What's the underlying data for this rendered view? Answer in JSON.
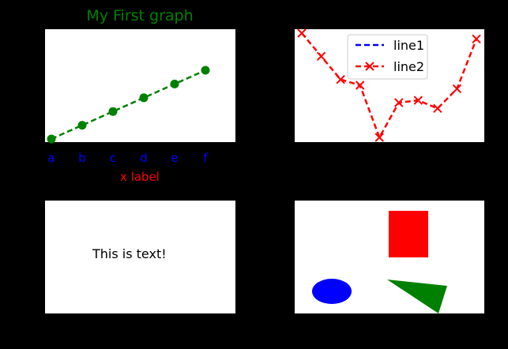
{
  "colors": {
    "figure_bg": "#000000",
    "axes_bg": "#ffffff",
    "title": "#008000",
    "x_tick": "#0000ff",
    "x_label": "#ff0000",
    "series_top_left": "#008000",
    "line1": "#0000ff",
    "line2": "#ff0000",
    "rectangle": "#ff0000",
    "ellipse": "#0000ff",
    "triangle": "#008000",
    "text": "#000000"
  },
  "chart_data": [
    {
      "type": "line",
      "title": "My First graph",
      "xlabel": "x label",
      "ylabel": "",
      "categories": [
        "a",
        "b",
        "c",
        "d",
        "e",
        "f"
      ],
      "series": [
        {
          "values": [
            0,
            1,
            2,
            3,
            4,
            5
          ],
          "style": "dashed",
          "marker": "circle",
          "color": "#008000"
        }
      ],
      "ylim": [
        0,
        5
      ],
      "grid": false,
      "show_yticks": false
    },
    {
      "type": "line",
      "title": "",
      "xlabel": "",
      "ylabel": "",
      "series": [
        {
          "name": "line1",
          "x": [],
          "values": [],
          "style": "dashed",
          "color": "#0000ff"
        },
        {
          "name": "line2",
          "x": [
            0,
            1,
            2,
            3,
            4,
            5,
            6,
            7,
            8,
            9
          ],
          "values": [
            0.95,
            0.75,
            0.55,
            0.5,
            0.05,
            0.35,
            0.37,
            0.3,
            0.47,
            0.9
          ],
          "style": "dashed",
          "marker": "x",
          "color": "#ff0000"
        }
      ],
      "xlim": [
        0,
        9
      ],
      "ylim": [
        0.05,
        0.95
      ],
      "legend": "top-center",
      "grid": false,
      "show_xticks": false,
      "show_yticks": false
    },
    {
      "type": "text",
      "title": "",
      "annotation": "This is text!"
    },
    {
      "type": "shapes",
      "title": "",
      "shapes": [
        {
          "kind": "rectangle",
          "color": "#ff0000"
        },
        {
          "kind": "ellipse",
          "color": "#0000ff"
        },
        {
          "kind": "triangle",
          "color": "#008000"
        }
      ]
    }
  ]
}
